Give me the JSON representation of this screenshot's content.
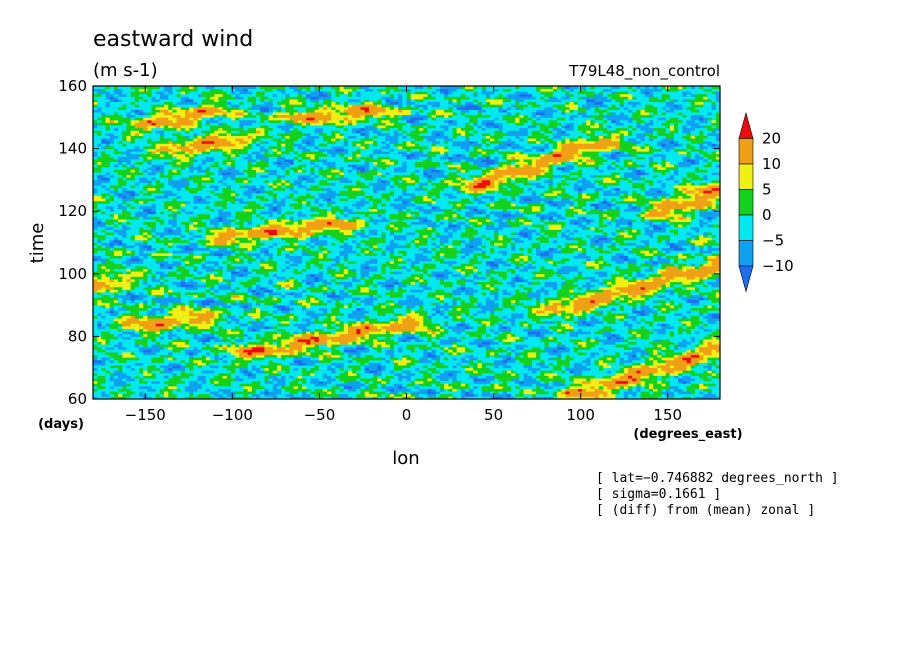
{
  "chart_data": {
    "type": "heatmap",
    "title": "eastward wind",
    "units": "(m s-1)",
    "subtitle": "T79L48_non_control",
    "xlabel": "lon",
    "xunits": "(degrees_east)",
    "ylabel": "time",
    "yunits": "(days)",
    "xlim": [
      -180,
      180
    ],
    "ylim": [
      60,
      160
    ],
    "xticks": [
      -150,
      -100,
      -50,
      0,
      50,
      100,
      150
    ],
    "xtick_labels": [
      "−150",
      "−100",
      "−50",
      "0",
      "50",
      "100",
      "150"
    ],
    "yticks": [
      60,
      80,
      100,
      120,
      140,
      160
    ],
    "ytick_labels": [
      "60",
      "80",
      "100",
      "120",
      "140",
      "160"
    ],
    "colorbar": {
      "levels": [
        -10,
        -5,
        0,
        5,
        10,
        20
      ],
      "labels": [
        "−10",
        "−5",
        "0",
        "5",
        "10",
        "20"
      ],
      "colors": [
        "#1e6cf0",
        "#0fa0f0",
        "#00e8f0",
        "#14d11e",
        "#f0f014",
        "#f0a014",
        "#f00a0a"
      ]
    },
    "jets": [
      {
        "lon0": -180,
        "t0": 96,
        "lon1": -170,
        "t1": 98
      },
      {
        "lon0": -145,
        "t0": 148,
        "lon1": -115,
        "t1": 152
      },
      {
        "lon0": -130,
        "t0": 140,
        "lon1": -100,
        "t1": 143
      },
      {
        "lon0": -90,
        "t0": 75,
        "lon1": 0,
        "t1": 84
      },
      {
        "lon0": -150,
        "t0": 84,
        "lon1": -120,
        "t1": 86
      },
      {
        "lon0": 40,
        "t0": 128,
        "lon1": 110,
        "t1": 142
      },
      {
        "lon0": 90,
        "t0": 89,
        "lon1": 180,
        "t1": 103
      },
      {
        "lon0": 100,
        "t0": 62,
        "lon1": 180,
        "t1": 76
      },
      {
        "lon0": -100,
        "t0": 112,
        "lon1": -40,
        "t1": 116
      },
      {
        "lon0": -60,
        "t0": 150,
        "lon1": -20,
        "t1": 152
      },
      {
        "lon0": 150,
        "t0": 120,
        "lon1": 180,
        "t1": 128
      }
    ],
    "notes": [
      "[ lat=−0.746882 degrees_north ]",
      "[ sigma=0.1661 ]",
      "[ (diff) from (mean) zonal ]"
    ]
  }
}
